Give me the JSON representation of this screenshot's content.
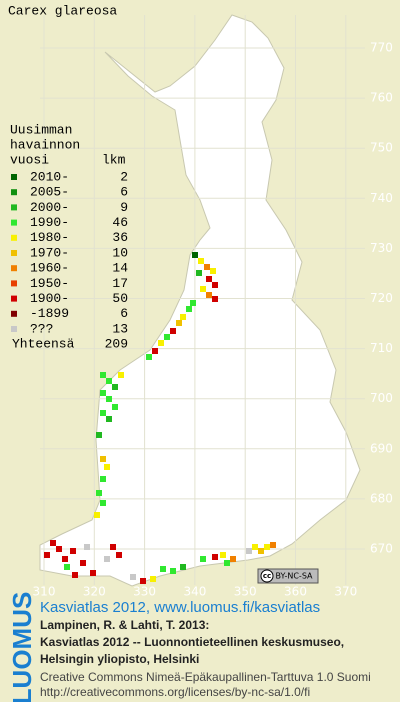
{
  "title": "Carex glareosa",
  "legend": {
    "heading": [
      "Uusimman",
      "havainnon"
    ],
    "col_period": "vuosi",
    "col_count": "lkm",
    "rows": [
      {
        "label": "2010-",
        "count": 2,
        "color": "#006400"
      },
      {
        "label": "2005-",
        "count": 6,
        "color": "#109010"
      },
      {
        "label": "2000-",
        "count": 9,
        "color": "#20b820"
      },
      {
        "label": "1990-",
        "count": 46,
        "color": "#30e830"
      },
      {
        "label": "1980-",
        "count": 36,
        "color": "#f8f000"
      },
      {
        "label": "1970-",
        "count": 10,
        "color": "#f0c000"
      },
      {
        "label": "1960-",
        "count": 14,
        "color": "#f08000"
      },
      {
        "label": "1950-",
        "count": 17,
        "color": "#e84000"
      },
      {
        "label": "1900-",
        "count": 50,
        "color": "#d00000"
      },
      {
        "label": "-1899",
        "count": 6,
        "color": "#800000"
      },
      {
        "label": "???",
        "count": 13,
        "color": "#c8c8c8"
      }
    ],
    "total_label": "Yhteensä",
    "total": 209
  },
  "grid": {
    "y_labels": [
      770,
      760,
      750,
      740,
      730,
      720,
      710,
      700,
      690,
      680,
      670
    ],
    "x_labels": [
      310,
      320,
      330,
      340,
      350,
      360,
      370
    ]
  },
  "license_badge": {
    "cc": "cc",
    "text": "BY-NC-SA"
  },
  "logo": "LUOMUS",
  "footer": {
    "link": "Kasviatlas 2012, www.luomus.fi/kasviatlas",
    "citation": [
      "Lampinen, R. & Lahti, T. 2013:",
      "Kasviatlas 2012 -- Luonnontieteellinen keskusmuseo,",
      "Helsingin yliopisto, Helsinki"
    ],
    "license": [
      "Creative Commons Nimeä-Epäkaupallinen-Tarttuva 1.0 Suomi",
      "http://creativecommons.org/licenses/by-nc-sa/1.0/fi"
    ]
  }
}
